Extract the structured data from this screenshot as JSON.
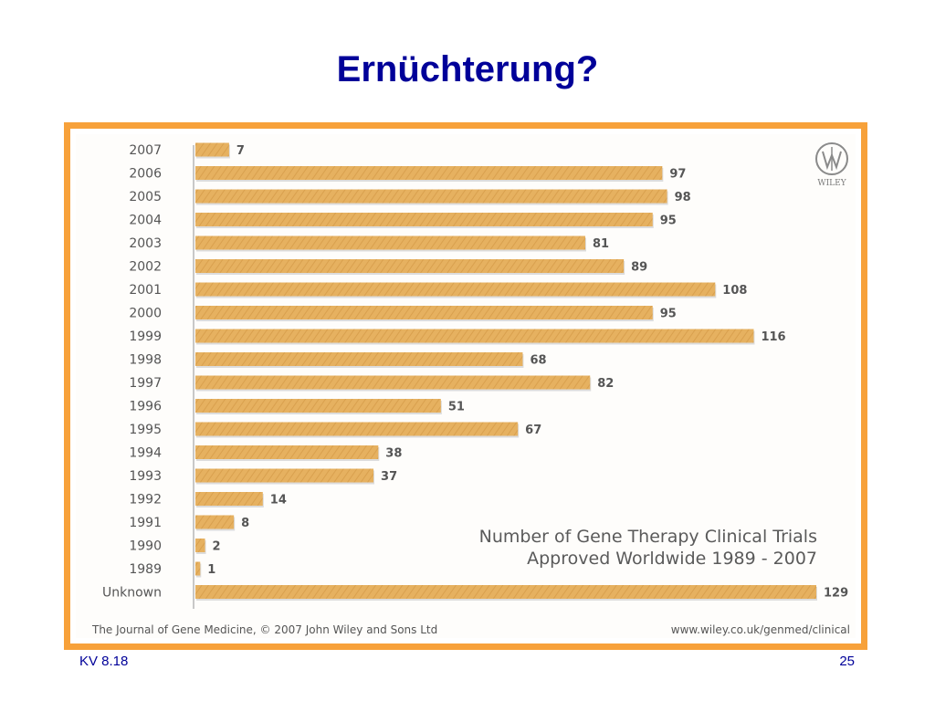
{
  "slide": {
    "title": "Ernüchterung?",
    "footer_left": "KV 8.18",
    "footer_right": "25"
  },
  "colors": {
    "title": "#000099",
    "frame_border": "#f7a13a",
    "bar": "#e6b160",
    "label_text": "#555555",
    "axis_line": "#c8c8c8"
  },
  "chart_data": {
    "type": "bar",
    "orientation": "horizontal",
    "categories": [
      "2007",
      "2006",
      "2005",
      "2004",
      "2003",
      "2002",
      "2001",
      "2000",
      "1999",
      "1998",
      "1997",
      "1996",
      "1995",
      "1994",
      "1993",
      "1992",
      "1991",
      "1990",
      "1989",
      "Unknown"
    ],
    "values": [
      7,
      97,
      98,
      95,
      81,
      89,
      108,
      95,
      116,
      68,
      82,
      51,
      67,
      38,
      37,
      14,
      8,
      2,
      1,
      129
    ],
    "title_lines": [
      "Number of Gene Therapy Clinical Trials",
      "Approved Worldwide 1989 - 2007"
    ],
    "xlim": [
      0,
      129
    ],
    "grid": false,
    "legend": "none",
    "data_labels": true
  },
  "logo": {
    "text": "WILEY",
    "icon": "wiley-logo-icon"
  },
  "source_text": "The Journal of Gene Medicine, © 2007 John Wiley and Sons Ltd",
  "url_text": "www.wiley.co.uk/genmed/clinical"
}
